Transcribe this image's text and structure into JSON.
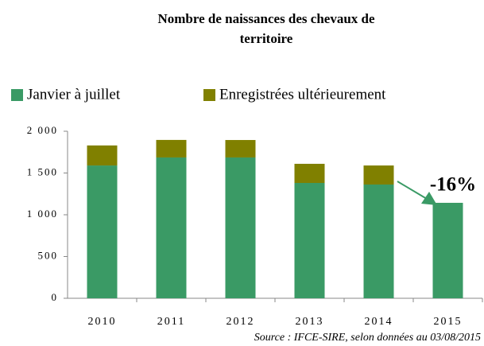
{
  "chart_data": {
    "type": "stacked_bar",
    "title": [
      "Nombre de naissances des chevaux de",
      "territoire"
    ],
    "categories": [
      "2010",
      "2011",
      "2012",
      "2013",
      "2014",
      "2015"
    ],
    "series": [
      {
        "name": "Janvier à juillet",
        "color": "#3a9a65",
        "values": [
          1590,
          1686,
          1686,
          1381,
          1362,
          1143
        ]
      },
      {
        "name": "Enregistrées ultérieurement",
        "color": "#808000",
        "values": [
          240,
          210,
          209,
          229,
          228,
          null
        ]
      }
    ],
    "ylim": [
      0,
      2000
    ],
    "yticks": [
      0,
      500,
      {
        "value": 1000,
        "label": "1 000"
      },
      {
        "value": 1500,
        "label": "1 500"
      },
      {
        "value": 2000,
        "label": "2 000"
      }
    ],
    "annotation": "-16%",
    "source": "Source : IFCE-SIRE, selon données au 03/08/2015",
    "legend": "top"
  }
}
